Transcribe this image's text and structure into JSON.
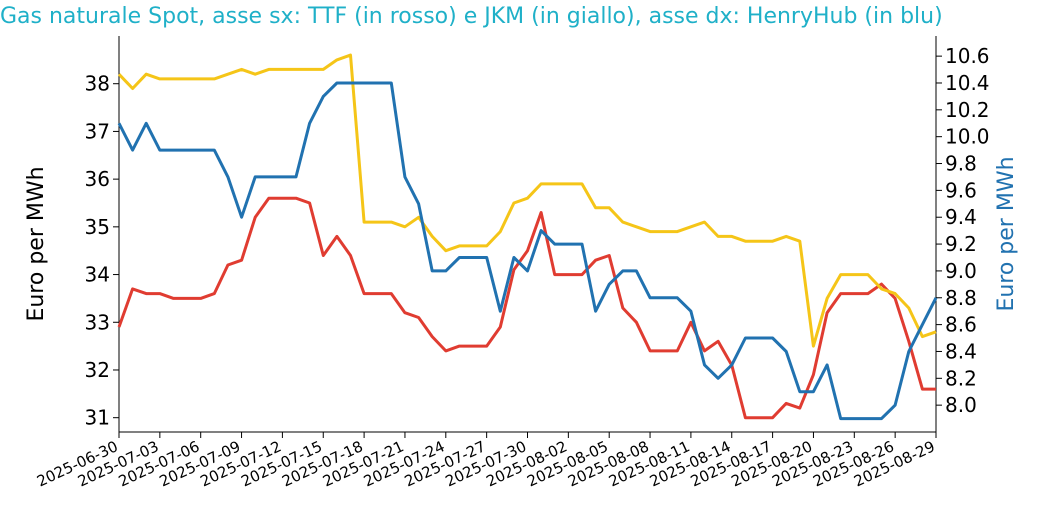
{
  "chart_data": {
    "type": "line",
    "title": "Gas naturale Spot, asse sx: TTF (in rosso) e JKM (in giallo), asse dx: HenryHub (in blu)",
    "ylabel_left": "Euro per MWh",
    "ylabel_right": "Euro per MWh",
    "ylim_left": [
      30.7,
      39.0
    ],
    "ylim_right": [
      7.8,
      10.75
    ],
    "yticks_left": [
      31,
      32,
      33,
      34,
      35,
      36,
      37,
      38
    ],
    "yticks_right": [
      "8.0",
      "8.2",
      "8.4",
      "8.6",
      "8.8",
      "9.0",
      "9.2",
      "9.4",
      "9.6",
      "9.8",
      "10.0",
      "10.2",
      "10.4",
      "10.6"
    ],
    "x_start": "2025-06-30",
    "x_end": "2025-08-29",
    "xticks": [
      "2025-06-30",
      "2025-07-03",
      "2025-07-06",
      "2025-07-09",
      "2025-07-12",
      "2025-07-15",
      "2025-07-18",
      "2025-07-21",
      "2025-07-24",
      "2025-07-27",
      "2025-07-30",
      "2025-08-02",
      "2025-08-05",
      "2025-08-08",
      "2025-08-11",
      "2025-08-14",
      "2025-08-17",
      "2025-08-20",
      "2025-08-23",
      "2025-08-26",
      "2025-08-29"
    ],
    "colors": {
      "ttf": "#e03c31",
      "jkm": "#f5c518",
      "hh": "#2172b0",
      "title": "#1fb0c8",
      "right_axis": "#2172b0"
    },
    "series": [
      {
        "name": "TTF",
        "axis": "left",
        "color": "#e03c31",
        "points": [
          [
            "2025-06-30",
            32.9
          ],
          [
            "2025-07-01",
            33.7
          ],
          [
            "2025-07-02",
            33.6
          ],
          [
            "2025-07-03",
            33.6
          ],
          [
            "2025-07-04",
            33.5
          ],
          [
            "2025-07-05",
            33.5
          ],
          [
            "2025-07-06",
            33.5
          ],
          [
            "2025-07-07",
            33.6
          ],
          [
            "2025-07-08",
            34.2
          ],
          [
            "2025-07-09",
            34.3
          ],
          [
            "2025-07-10",
            35.2
          ],
          [
            "2025-07-11",
            35.6
          ],
          [
            "2025-07-12",
            35.6
          ],
          [
            "2025-07-13",
            35.6
          ],
          [
            "2025-07-14",
            35.5
          ],
          [
            "2025-07-15",
            34.4
          ],
          [
            "2025-07-16",
            34.8
          ],
          [
            "2025-07-17",
            34.4
          ],
          [
            "2025-07-18",
            33.6
          ],
          [
            "2025-07-19",
            33.6
          ],
          [
            "2025-07-20",
            33.6
          ],
          [
            "2025-07-21",
            33.2
          ],
          [
            "2025-07-22",
            33.1
          ],
          [
            "2025-07-23",
            32.7
          ],
          [
            "2025-07-24",
            32.4
          ],
          [
            "2025-07-25",
            32.5
          ],
          [
            "2025-07-26",
            32.5
          ],
          [
            "2025-07-27",
            32.5
          ],
          [
            "2025-07-28",
            32.9
          ],
          [
            "2025-07-29",
            34.1
          ],
          [
            "2025-07-30",
            34.5
          ],
          [
            "2025-07-31",
            35.3
          ],
          [
            "2025-08-01",
            34.0
          ],
          [
            "2025-08-02",
            34.0
          ],
          [
            "2025-08-03",
            34.0
          ],
          [
            "2025-08-04",
            34.3
          ],
          [
            "2025-08-05",
            34.4
          ],
          [
            "2025-08-06",
            33.3
          ],
          [
            "2025-08-07",
            33.0
          ],
          [
            "2025-08-08",
            32.4
          ],
          [
            "2025-08-09",
            32.4
          ],
          [
            "2025-08-10",
            32.4
          ],
          [
            "2025-08-11",
            33.0
          ],
          [
            "2025-08-12",
            32.4
          ],
          [
            "2025-08-13",
            32.6
          ],
          [
            "2025-08-14",
            32.1
          ],
          [
            "2025-08-15",
            31.0
          ],
          [
            "2025-08-16",
            31.0
          ],
          [
            "2025-08-17",
            31.0
          ],
          [
            "2025-08-18",
            31.3
          ],
          [
            "2025-08-19",
            31.2
          ],
          [
            "2025-08-20",
            31.9
          ],
          [
            "2025-08-21",
            33.2
          ],
          [
            "2025-08-22",
            33.6
          ],
          [
            "2025-08-23",
            33.6
          ],
          [
            "2025-08-24",
            33.6
          ],
          [
            "2025-08-25",
            33.8
          ],
          [
            "2025-08-26",
            33.5
          ],
          [
            "2025-08-27",
            32.6
          ],
          [
            "2025-08-28",
            31.6
          ],
          [
            "2025-08-29",
            31.6
          ]
        ]
      },
      {
        "name": "JKM",
        "axis": "left",
        "color": "#f5c518",
        "points": [
          [
            "2025-06-30",
            38.2
          ],
          [
            "2025-07-01",
            37.9
          ],
          [
            "2025-07-02",
            38.2
          ],
          [
            "2025-07-03",
            38.1
          ],
          [
            "2025-07-04",
            38.1
          ],
          [
            "2025-07-05",
            38.1
          ],
          [
            "2025-07-06",
            38.1
          ],
          [
            "2025-07-07",
            38.1
          ],
          [
            "2025-07-08",
            38.2
          ],
          [
            "2025-07-09",
            38.3
          ],
          [
            "2025-07-10",
            38.2
          ],
          [
            "2025-07-11",
            38.3
          ],
          [
            "2025-07-12",
            38.3
          ],
          [
            "2025-07-13",
            38.3
          ],
          [
            "2025-07-14",
            38.3
          ],
          [
            "2025-07-15",
            38.3
          ],
          [
            "2025-07-16",
            38.5
          ],
          [
            "2025-07-17",
            38.6
          ],
          [
            "2025-07-18",
            35.1
          ],
          [
            "2025-07-19",
            35.1
          ],
          [
            "2025-07-20",
            35.1
          ],
          [
            "2025-07-21",
            35.0
          ],
          [
            "2025-07-22",
            35.2
          ],
          [
            "2025-07-23",
            34.8
          ],
          [
            "2025-07-24",
            34.5
          ],
          [
            "2025-07-25",
            34.6
          ],
          [
            "2025-07-26",
            34.6
          ],
          [
            "2025-07-27",
            34.6
          ],
          [
            "2025-07-28",
            34.9
          ],
          [
            "2025-07-29",
            35.5
          ],
          [
            "2025-07-30",
            35.6
          ],
          [
            "2025-07-31",
            35.9
          ],
          [
            "2025-08-01",
            35.9
          ],
          [
            "2025-08-02",
            35.9
          ],
          [
            "2025-08-03",
            35.9
          ],
          [
            "2025-08-04",
            35.4
          ],
          [
            "2025-08-05",
            35.4
          ],
          [
            "2025-08-06",
            35.1
          ],
          [
            "2025-08-07",
            35.0
          ],
          [
            "2025-08-08",
            34.9
          ],
          [
            "2025-08-09",
            34.9
          ],
          [
            "2025-08-10",
            34.9
          ],
          [
            "2025-08-11",
            35.0
          ],
          [
            "2025-08-12",
            35.1
          ],
          [
            "2025-08-13",
            34.8
          ],
          [
            "2025-08-14",
            34.8
          ],
          [
            "2025-08-15",
            34.7
          ],
          [
            "2025-08-16",
            34.7
          ],
          [
            "2025-08-17",
            34.7
          ],
          [
            "2025-08-18",
            34.8
          ],
          [
            "2025-08-19",
            34.7
          ],
          [
            "2025-08-20",
            32.5
          ],
          [
            "2025-08-21",
            33.5
          ],
          [
            "2025-08-22",
            34.0
          ],
          [
            "2025-08-23",
            34.0
          ],
          [
            "2025-08-24",
            34.0
          ],
          [
            "2025-08-25",
            33.7
          ],
          [
            "2025-08-26",
            33.6
          ],
          [
            "2025-08-27",
            33.3
          ],
          [
            "2025-08-28",
            32.7
          ],
          [
            "2025-08-29",
            32.8
          ]
        ]
      },
      {
        "name": "HenryHub",
        "axis": "right",
        "color": "#2172b0",
        "points": [
          [
            "2025-06-30",
            10.1
          ],
          [
            "2025-07-01",
            9.9
          ],
          [
            "2025-07-02",
            10.1
          ],
          [
            "2025-07-03",
            9.9
          ],
          [
            "2025-07-04",
            9.9
          ],
          [
            "2025-07-05",
            9.9
          ],
          [
            "2025-07-06",
            9.9
          ],
          [
            "2025-07-07",
            9.9
          ],
          [
            "2025-07-08",
            9.7
          ],
          [
            "2025-07-09",
            9.4
          ],
          [
            "2025-07-10",
            9.7
          ],
          [
            "2025-07-11",
            9.7
          ],
          [
            "2025-07-12",
            9.7
          ],
          [
            "2025-07-13",
            9.7
          ],
          [
            "2025-07-14",
            10.1
          ],
          [
            "2025-07-15",
            10.3
          ],
          [
            "2025-07-16",
            10.4
          ],
          [
            "2025-07-17",
            10.4
          ],
          [
            "2025-07-18",
            10.4
          ],
          [
            "2025-07-19",
            10.4
          ],
          [
            "2025-07-20",
            10.4
          ],
          [
            "2025-07-21",
            9.7
          ],
          [
            "2025-07-22",
            9.5
          ],
          [
            "2025-07-23",
            9.0
          ],
          [
            "2025-07-24",
            9.0
          ],
          [
            "2025-07-25",
            9.1
          ],
          [
            "2025-07-26",
            9.1
          ],
          [
            "2025-07-27",
            9.1
          ],
          [
            "2025-07-28",
            8.7
          ],
          [
            "2025-07-29",
            9.1
          ],
          [
            "2025-07-30",
            9.0
          ],
          [
            "2025-07-31",
            9.3
          ],
          [
            "2025-08-01",
            9.2
          ],
          [
            "2025-08-02",
            9.2
          ],
          [
            "2025-08-03",
            9.2
          ],
          [
            "2025-08-04",
            8.7
          ],
          [
            "2025-08-05",
            8.9
          ],
          [
            "2025-08-06",
            9.0
          ],
          [
            "2025-08-07",
            9.0
          ],
          [
            "2025-08-08",
            8.8
          ],
          [
            "2025-08-09",
            8.8
          ],
          [
            "2025-08-10",
            8.8
          ],
          [
            "2025-08-11",
            8.7
          ],
          [
            "2025-08-12",
            8.3
          ],
          [
            "2025-08-13",
            8.2
          ],
          [
            "2025-08-14",
            8.3
          ],
          [
            "2025-08-15",
            8.5
          ],
          [
            "2025-08-16",
            8.5
          ],
          [
            "2025-08-17",
            8.5
          ],
          [
            "2025-08-18",
            8.4
          ],
          [
            "2025-08-19",
            8.1
          ],
          [
            "2025-08-20",
            8.1
          ],
          [
            "2025-08-21",
            8.3
          ],
          [
            "2025-08-22",
            7.9
          ],
          [
            "2025-08-23",
            7.9
          ],
          [
            "2025-08-24",
            7.9
          ],
          [
            "2025-08-25",
            7.9
          ],
          [
            "2025-08-26",
            8.0
          ],
          [
            "2025-08-27",
            8.4
          ],
          [
            "2025-08-28",
            8.6
          ],
          [
            "2025-08-29",
            8.8
          ]
        ]
      }
    ]
  }
}
